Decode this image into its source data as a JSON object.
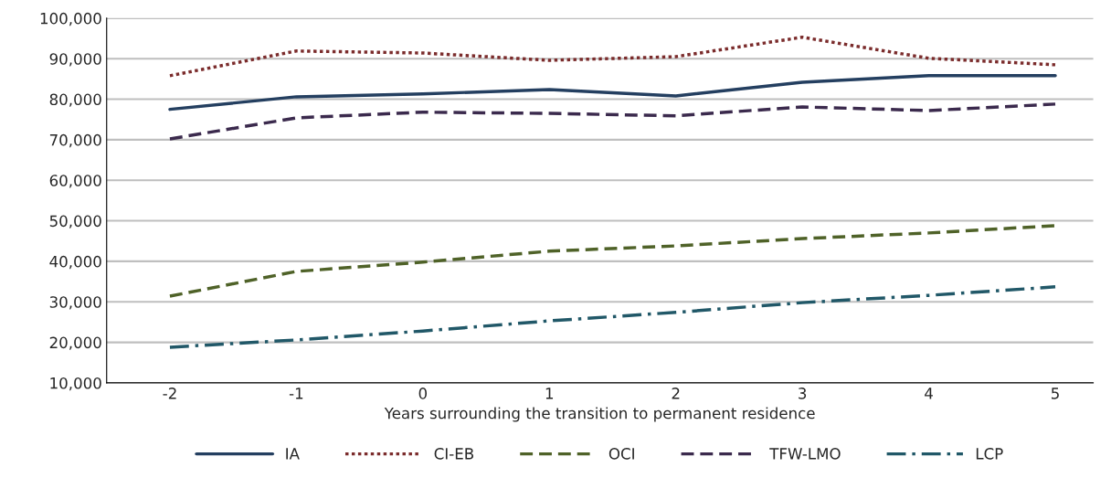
{
  "chart_data": {
    "type": "line",
    "xlabel": "Years surrounding the transition to permanent residence",
    "categories": [
      "-2",
      "-1",
      "0",
      "1",
      "2",
      "3",
      "4",
      "5"
    ],
    "ylim": [
      10000,
      100000
    ],
    "yticks": [
      {
        "value": 10000,
        "label": "10,000"
      },
      {
        "value": 20000,
        "label": "20,000"
      },
      {
        "value": 30000,
        "label": "30,000"
      },
      {
        "value": 40000,
        "label": "40,000"
      },
      {
        "value": 50000,
        "label": "50,000"
      },
      {
        "value": 60000,
        "label": "60,000"
      },
      {
        "value": 70000,
        "label": "70,000"
      },
      {
        "value": 80000,
        "label": "80,000"
      },
      {
        "value": 90000,
        "label": "90,000"
      },
      {
        "value": 100000,
        "label": "100,000"
      }
    ],
    "grid": "y",
    "legend": "bottom",
    "marker": "none",
    "series": [
      {
        "name": "IA",
        "color": "#243f60",
        "line_style": "solid",
        "values": [
          77500,
          80600,
          81300,
          82400,
          80800,
          84200,
          85800,
          85800
        ]
      },
      {
        "name": "CI-EB",
        "color": "#7b2c2c",
        "line_style": "dotted",
        "values": [
          85800,
          91900,
          91400,
          89600,
          90500,
          95300,
          90100,
          88500
        ]
      },
      {
        "name": "OCI",
        "color": "#4f6228",
        "line_style": "dashed",
        "values": [
          31400,
          37500,
          39800,
          42500,
          43800,
          45600,
          47000,
          48800
        ]
      },
      {
        "name": "TFW-LMO",
        "color": "#3b2a4d",
        "line_style": "dashed",
        "values": [
          70200,
          75400,
          76800,
          76500,
          75900,
          78100,
          77200,
          78800
        ]
      },
      {
        "name": "LCP",
        "color": "#215868",
        "line_style": "dashdot",
        "values": [
          18800,
          20600,
          22800,
          25300,
          27400,
          29800,
          31600,
          33700
        ]
      }
    ]
  }
}
